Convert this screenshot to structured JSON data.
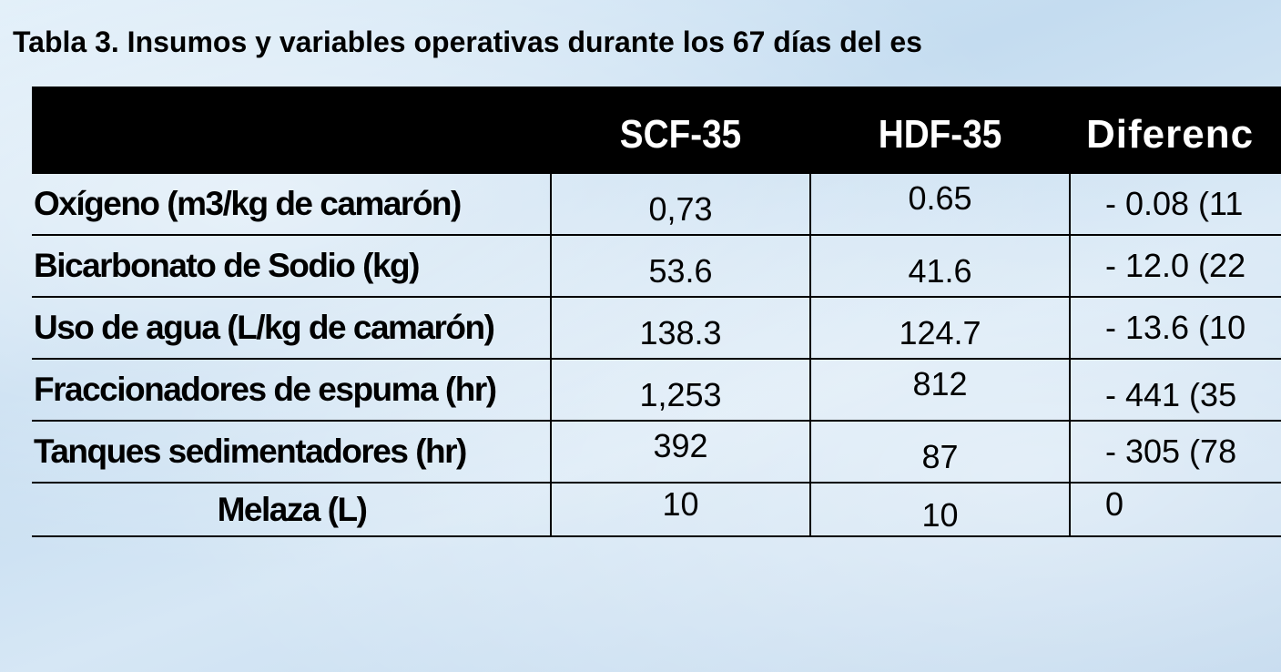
{
  "title": "Tabla 3. Insumos y variables operativas durante los 67 días del es",
  "table": {
    "headers": [
      "",
      "SCF-35",
      "HDF-35",
      "Diferenc"
    ],
    "rows": [
      {
        "label": "Oxígeno (m3/kg de camarón)",
        "scf": "0,73",
        "hdf": "0.65",
        "diff": "- 0.08 (11"
      },
      {
        "label": "Bicarbonato de Sodio (kg)",
        "scf": "53.6",
        "hdf": "41.6",
        "diff": "- 12.0 (22"
      },
      {
        "label": "Uso de agua (L/kg de camarón)",
        "scf": "138.3",
        "hdf": "124.7",
        "diff": "- 13.6 (10"
      },
      {
        "label": "Fraccionadores de espuma (hr)",
        "scf": "1,253",
        "hdf": "812",
        "diff": "- 441 (35"
      },
      {
        "label": "Tanques sedimentadores (hr)",
        "scf": "392",
        "hdf": "87",
        "diff": "- 305 (78"
      },
      {
        "label": "Melaza (L)",
        "scf": "10",
        "hdf": "10",
        "diff": "0"
      }
    ]
  }
}
